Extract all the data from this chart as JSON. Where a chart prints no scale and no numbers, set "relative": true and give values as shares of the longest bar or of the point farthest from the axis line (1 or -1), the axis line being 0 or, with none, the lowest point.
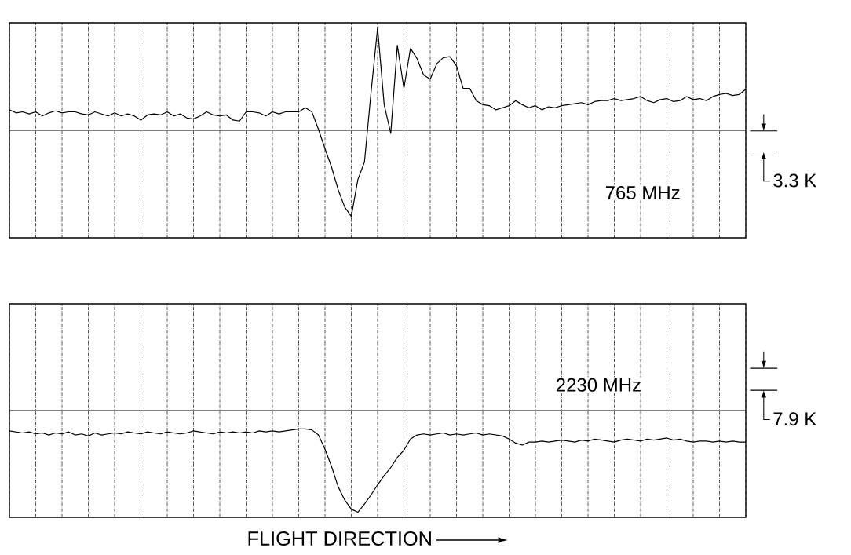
{
  "chart_data": [
    {
      "type": "line",
      "relative": true,
      "color": "#000000",
      "grid": "x",
      "tick_labels": false,
      "line_style": "solid",
      "marker": "none",
      "categories": [
        null,
        null,
        null,
        null,
        null,
        null,
        null,
        null,
        null,
        null,
        null,
        null,
        null,
        null,
        null,
        null,
        null,
        null,
        null,
        null,
        null,
        null,
        null,
        null,
        null,
        null,
        null,
        null,
        null,
        null,
        null,
        null,
        null,
        null,
        null,
        null,
        null,
        null,
        null,
        null,
        null,
        null,
        null,
        null,
        null,
        null,
        null,
        null,
        null,
        null,
        null,
        null,
        null,
        null,
        null,
        null,
        null,
        null,
        null,
        null,
        null,
        null,
        null,
        null,
        null,
        null,
        null,
        null,
        null,
        null,
        null,
        null,
        null,
        null,
        null,
        null,
        null,
        null,
        null,
        null,
        null,
        null,
        null,
        null,
        null,
        null,
        null,
        null,
        null,
        null,
        null,
        null,
        null,
        null,
        null,
        null,
        null,
        null,
        null,
        null,
        null,
        null,
        null,
        null,
        null,
        null,
        null,
        null,
        null,
        null,
        null,
        null,
        null
      ],
      "values": [
        0.2,
        0.17,
        0.18,
        0.16,
        0.18,
        0.14,
        0.17,
        0.19,
        0.17,
        0.18,
        0.18,
        0.16,
        0.15,
        0.18,
        0.16,
        0.14,
        0.17,
        0.14,
        0.16,
        0.14,
        0.1,
        0.15,
        0.16,
        0.15,
        0.18,
        0.14,
        0.16,
        0.12,
        0.11,
        0.14,
        0.18,
        0.15,
        0.14,
        0.15,
        0.1,
        0.09,
        0.18,
        0.18,
        0.17,
        0.14,
        0.18,
        0.16,
        0.18,
        0.18,
        0.18,
        0.22,
        0.18,
        0.01,
        -0.18,
        -0.36,
        -0.58,
        -0.75,
        -0.84,
        -0.48,
        -0.31,
        0.37,
        1.0,
        0.25,
        -0.03,
        0.83,
        0.41,
        0.8,
        0.7,
        0.54,
        0.5,
        0.65,
        0.71,
        0.72,
        0.63,
        0.41,
        0.41,
        0.29,
        0.25,
        0.24,
        0.2,
        0.22,
        0.24,
        0.29,
        0.25,
        0.22,
        0.24,
        0.2,
        0.23,
        0.22,
        0.24,
        0.25,
        0.26,
        0.27,
        0.25,
        0.28,
        0.29,
        0.29,
        0.31,
        0.29,
        0.3,
        0.31,
        0.33,
        0.29,
        0.27,
        0.3,
        0.31,
        0.28,
        0.29,
        0.33,
        0.3,
        0.31,
        0.29,
        0.33,
        0.35,
        0.36,
        0.34,
        0.35,
        0.4
      ],
      "annotations": [
        "765 MHz",
        "3.3 K"
      ]
    },
    {
      "type": "line",
      "relative": true,
      "color": "#000000",
      "grid": "x",
      "tick_labels": false,
      "line_style": "solid",
      "marker": "none",
      "xlabel": "FLIGHT DIRECTION",
      "categories": [
        null,
        null,
        null,
        null,
        null,
        null,
        null,
        null,
        null,
        null,
        null,
        null,
        null,
        null,
        null,
        null,
        null,
        null,
        null,
        null,
        null,
        null,
        null,
        null,
        null,
        null,
        null,
        null,
        null,
        null,
        null,
        null,
        null,
        null,
        null,
        null,
        null,
        null,
        null,
        null,
        null,
        null,
        null,
        null,
        null,
        null,
        null,
        null,
        null,
        null,
        null,
        null,
        null,
        null,
        null,
        null,
        null,
        null,
        null,
        null,
        null,
        null,
        null,
        null,
        null,
        null,
        null,
        null,
        null,
        null,
        null,
        null,
        null,
        null,
        null,
        null,
        null,
        null,
        null,
        null,
        null,
        null,
        null,
        null,
        null,
        null,
        null,
        null,
        null,
        null,
        null,
        null,
        null,
        null,
        null,
        null,
        null,
        null,
        null,
        null,
        null,
        null,
        null,
        null,
        null,
        null,
        null,
        null,
        null,
        null,
        null,
        null,
        null
      ],
      "values": [
        -0.2,
        -0.21,
        -0.22,
        -0.21,
        -0.23,
        -0.22,
        -0.24,
        -0.22,
        -0.23,
        -0.21,
        -0.24,
        -0.23,
        -0.25,
        -0.22,
        -0.24,
        -0.23,
        -0.22,
        -0.23,
        -0.21,
        -0.22,
        -0.23,
        -0.21,
        -0.22,
        -0.23,
        -0.21,
        -0.22,
        -0.23,
        -0.22,
        -0.2,
        -0.21,
        -0.22,
        -0.23,
        -0.21,
        -0.22,
        -0.21,
        -0.22,
        -0.21,
        -0.22,
        -0.2,
        -0.21,
        -0.2,
        -0.21,
        -0.2,
        -0.19,
        -0.18,
        -0.18,
        -0.19,
        -0.24,
        -0.38,
        -0.55,
        -0.75,
        -0.88,
        -0.97,
        -1.0,
        -0.92,
        -0.83,
        -0.73,
        -0.64,
        -0.56,
        -0.46,
        -0.39,
        -0.28,
        -0.24,
        -0.23,
        -0.24,
        -0.23,
        -0.22,
        -0.24,
        -0.23,
        -0.24,
        -0.23,
        -0.22,
        -0.24,
        -0.23,
        -0.24,
        -0.25,
        -0.28,
        -0.32,
        -0.34,
        -0.31,
        -0.31,
        -0.3,
        -0.31,
        -0.3,
        -0.29,
        -0.3,
        -0.31,
        -0.29,
        -0.3,
        -0.28,
        -0.29,
        -0.3,
        -0.31,
        -0.29,
        -0.28,
        -0.29,
        -0.3,
        -0.28,
        -0.29,
        -0.28,
        -0.27,
        -0.29,
        -0.28,
        -0.3,
        -0.31,
        -0.3,
        -0.3,
        -0.31,
        -0.3,
        -0.31,
        -0.3,
        -0.31,
        -0.31
      ],
      "annotations": [
        "2230 MHz",
        "7.9 K"
      ]
    }
  ]
}
